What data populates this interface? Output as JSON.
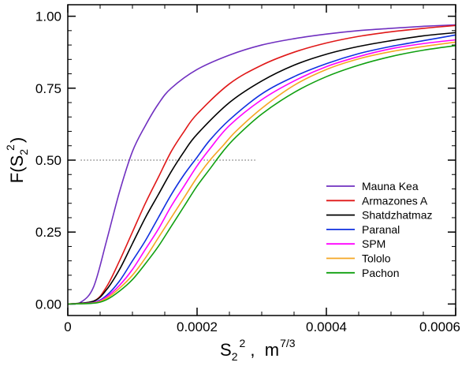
{
  "chart_data": {
    "type": "line",
    "title": "",
    "xlabel": {
      "main": "S",
      "sub": "2",
      "sup": "2",
      "sep": " ,  m",
      "unit_sup": "7/3"
    },
    "ylabel": {
      "main": "F(S",
      "sub": "2",
      "sup": "2",
      "close": ")"
    },
    "xlim": [
      0,
      0.0006
    ],
    "ylim": [
      -0.04,
      1.04
    ],
    "xticks": [
      {
        "value": 0,
        "label": "0"
      },
      {
        "value": 0.0002,
        "label": "0.0002"
      },
      {
        "value": 0.0004,
        "label": "0.0004"
      },
      {
        "value": 0.0006,
        "label": "0.0006"
      }
    ],
    "yticks": [
      {
        "value": 0.0,
        "label": "0.00"
      },
      {
        "value": 0.25,
        "label": "0.25"
      },
      {
        "value": 0.5,
        "label": "0.50"
      },
      {
        "value": 0.75,
        "label": "0.75"
      },
      {
        "value": 1.0,
        "label": "1.00"
      }
    ],
    "x_minor_step": 5e-05,
    "y_minor_step": 0.05,
    "reference_line": {
      "y": 0.5,
      "x_start": 2e-05,
      "x_end": 0.00029,
      "style": "dotted"
    },
    "legend_position": "lower-right",
    "series": [
      {
        "name": "Mauna Kea",
        "color": "#7030c0",
        "x": [
          0,
          2e-05,
          4e-05,
          6e-05,
          8e-05,
          0.0001,
          0.00012,
          0.00014,
          0.00016,
          0.0002,
          0.00025,
          0.0003,
          0.00035,
          0.0004,
          0.00045,
          0.0005,
          0.00055,
          0.0006
        ],
        "y": [
          0,
          0.006,
          0.06,
          0.22,
          0.39,
          0.53,
          0.62,
          0.695,
          0.75,
          0.815,
          0.865,
          0.9,
          0.922,
          0.938,
          0.95,
          0.958,
          0.965,
          0.97
        ]
      },
      {
        "name": "Armazones A",
        "color": "#e01818",
        "x": [
          0,
          4e-05,
          6e-05,
          8e-05,
          0.0001,
          0.00012,
          0.00014,
          0.00016,
          0.00018,
          0.0002,
          0.00025,
          0.0003,
          0.00035,
          0.0004,
          0.00045,
          0.0005,
          0.00055,
          0.0006
        ],
        "y": [
          0,
          0.01,
          0.06,
          0.15,
          0.25,
          0.35,
          0.44,
          0.53,
          0.6,
          0.66,
          0.765,
          0.83,
          0.875,
          0.907,
          0.93,
          0.946,
          0.958,
          0.968
        ]
      },
      {
        "name": "Shatdzhatmaz",
        "color": "#000000",
        "x": [
          0,
          4e-05,
          6e-05,
          8e-05,
          0.0001,
          0.00012,
          0.00014,
          0.00016,
          0.00018,
          0.0002,
          0.00025,
          0.0003,
          0.00035,
          0.0004,
          0.00045,
          0.0005,
          0.00055,
          0.0006
        ],
        "y": [
          0,
          0.01,
          0.05,
          0.12,
          0.21,
          0.3,
          0.38,
          0.46,
          0.53,
          0.59,
          0.7,
          0.775,
          0.83,
          0.868,
          0.895,
          0.915,
          0.932,
          0.943
        ]
      },
      {
        "name": "Paranal",
        "color": "#1030e0",
        "x": [
          0,
          4e-05,
          6e-05,
          8e-05,
          0.0001,
          0.00012,
          0.00014,
          0.00016,
          0.00018,
          0.0002,
          0.00022,
          0.00025,
          0.0003,
          0.00035,
          0.0004,
          0.00045,
          0.0005,
          0.00055,
          0.0006
        ],
        "y": [
          0,
          0.006,
          0.03,
          0.08,
          0.15,
          0.22,
          0.3,
          0.38,
          0.45,
          0.51,
          0.57,
          0.64,
          0.73,
          0.79,
          0.835,
          0.87,
          0.895,
          0.915,
          0.935
        ]
      },
      {
        "name": "SPM",
        "color": "#ff00ff",
        "x": [
          0,
          4e-05,
          6e-05,
          8e-05,
          0.0001,
          0.00012,
          0.00014,
          0.00016,
          0.00018,
          0.0002,
          0.00022,
          0.00025,
          0.0003,
          0.00035,
          0.0004,
          0.00045,
          0.0005,
          0.00055,
          0.0006
        ],
        "y": [
          0,
          0.005,
          0.025,
          0.065,
          0.12,
          0.19,
          0.26,
          0.34,
          0.41,
          0.48,
          0.54,
          0.62,
          0.71,
          0.775,
          0.825,
          0.86,
          0.887,
          0.905,
          0.918
        ]
      },
      {
        "name": "Tololo",
        "color": "#f5a623",
        "x": [
          0,
          4e-05,
          6e-05,
          8e-05,
          0.0001,
          0.00012,
          0.00014,
          0.00016,
          0.00018,
          0.0002,
          0.00022,
          0.00024,
          0.00026,
          0.0003,
          0.00035,
          0.0004,
          0.00045,
          0.0005,
          0.00055,
          0.0006
        ],
        "y": [
          0,
          0.004,
          0.02,
          0.055,
          0.1,
          0.16,
          0.23,
          0.3,
          0.37,
          0.44,
          0.5,
          0.55,
          0.6,
          0.68,
          0.76,
          0.815,
          0.852,
          0.877,
          0.895,
          0.91
        ]
      },
      {
        "name": "Pachon",
        "color": "#10a010",
        "x": [
          0,
          4e-05,
          6e-05,
          8e-05,
          0.0001,
          0.00012,
          0.00014,
          0.00016,
          0.00018,
          0.0002,
          0.00022,
          0.00024,
          0.00026,
          0.0003,
          0.00035,
          0.0004,
          0.00045,
          0.0005,
          0.00055,
          0.0006
        ],
        "y": [
          0,
          0.003,
          0.015,
          0.045,
          0.085,
          0.14,
          0.2,
          0.27,
          0.34,
          0.41,
          0.47,
          0.53,
          0.58,
          0.66,
          0.735,
          0.79,
          0.83,
          0.86,
          0.882,
          0.898
        ]
      }
    ]
  }
}
